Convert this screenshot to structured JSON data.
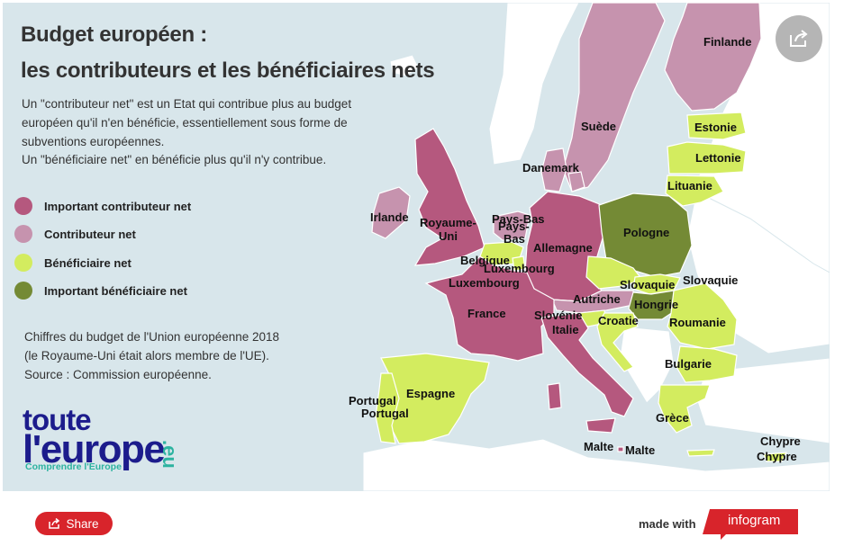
{
  "title": {
    "line1": "Budget européen :",
    "line2": "les contributeurs et les bénéficiaires nets"
  },
  "description": [
    "Un \"contributeur net\" est un Etat qui contribue plus au budget",
    "européen qu'il n'en bénéficie, essentiellement sous forme de",
    "subventions européennes.",
    "Un \"bénéficiaire net\" en bénéficie plus qu'il n'y contribue."
  ],
  "legend": [
    {
      "label": "Important contributeur net",
      "color": "#b5587e"
    },
    {
      "label": "Contributeur net",
      "color": "#c693ae"
    },
    {
      "label": "Bénéficiaire net",
      "color": "#d3ec5f"
    },
    {
      "label": "Important bénéficiaire net",
      "color": "#748a35"
    }
  ],
  "source": [
    "Chiffres du budget de l'Union européenne 2018",
    "(le Royaume-Uni était alors membre de l'UE).",
    "Source : Commission européenne."
  ],
  "logo": {
    "line1": "toute",
    "line2": "l'europe",
    "domain": ".eu",
    "tagline": "Comprendre l'Europe"
  },
  "map": {
    "colors": {
      "sea": "#d8e6eb",
      "land_non_eu": "#ffffff",
      "important_contributor": "#b5587e",
      "contributor": "#c693ae",
      "beneficiary": "#d3ec5f",
      "important_beneficiary": "#748a35"
    },
    "countries": {
      "finlande": "Finlande",
      "suede": "Suède",
      "estonie": "Estonie",
      "lettonie": "Lettonie",
      "lituanie": "Lituanie",
      "danemark": "Danemark",
      "irlande": "Irlande",
      "royaume_uni_1": "Royaume-",
      "royaume_uni_2": "Uni",
      "pays_bas_1": "Pays-Bas",
      "pays_bas_2": "Pays-",
      "pays_bas_3": "Bas",
      "allemagne": "Allemagne",
      "pologne": "Pologne",
      "belgique": "Belgique",
      "luxembourg_1": "Luxembourg",
      "luxembourg_2": "Luxembourg",
      "slovaquie_1": "Slovaquie",
      "slovaquie_2": "Slovaquie",
      "autriche": "Autriche",
      "hongrie": "Hongrie",
      "france": "France",
      "slovenie": "Slovénie",
      "croatie": "Croatie",
      "roumanie": "Roumanie",
      "italie": "Italie",
      "bulgarie": "Bulgarie",
      "portugal_1": "Portugal",
      "portugal_2": "Portugal",
      "espagne": "Espagne",
      "grece": "Grèce",
      "malte_1": "Malte",
      "malte_2": "Malte",
      "chypre_1": "Chypre",
      "chypre_2": "Chypre"
    }
  },
  "footer": {
    "share_label": "Share",
    "made_with": "made with",
    "brand": "infogram"
  }
}
